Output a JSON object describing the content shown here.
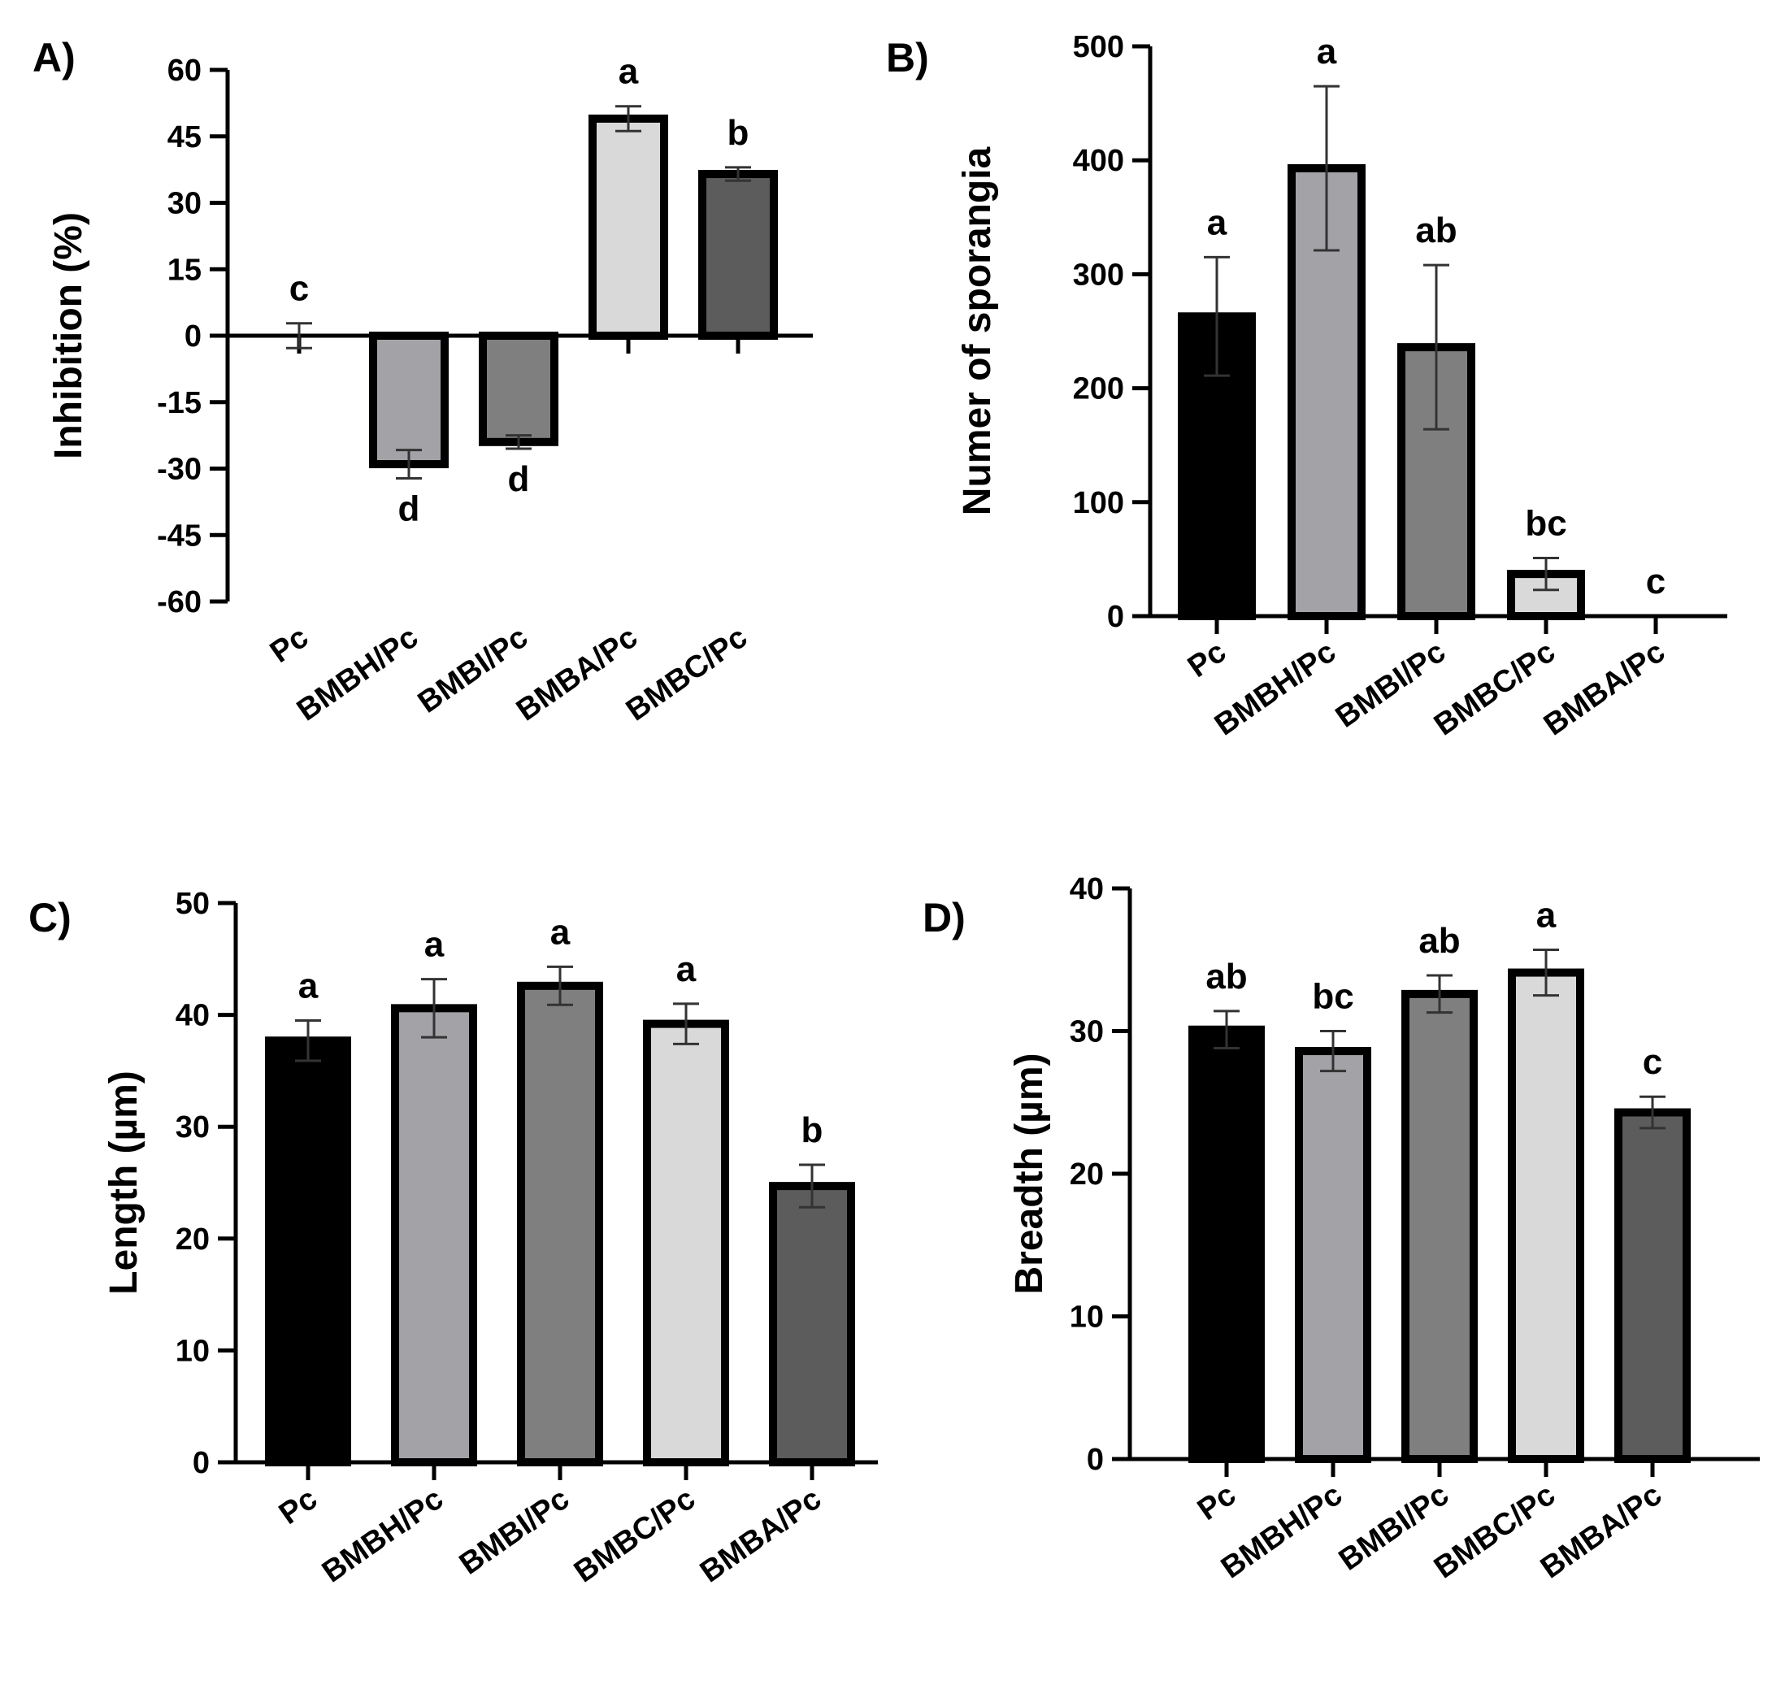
{
  "colors": {
    "black": "#000000",
    "light_gray": "#a3a3a7",
    "mid_gray": "#7f7f7f",
    "pale_gray": "#d9d9d9",
    "dark_gray": "#5c5c5c",
    "axis": "#000000"
  },
  "chart_data": [
    {
      "id": "A",
      "panel_label": "A)",
      "type": "bar",
      "title": "",
      "xlabel": "",
      "ylabel": "Inhibition (%)",
      "ylim": [
        -60,
        60
      ],
      "yticks": [
        60,
        45,
        30,
        15,
        0,
        -15,
        -30,
        -45,
        -60
      ],
      "ytick_labels": [
        "60",
        "45",
        "30",
        "15",
        "0",
        "-15",
        "-30",
        "-45",
        "-60"
      ],
      "categories": [
        "Pc",
        "BMBH/Pc",
        "BMBI/Pc",
        "BMBA/Pc",
        "BMBC/Pc"
      ],
      "values": [
        0,
        -29,
        -24,
        49,
        36.5
      ],
      "errors": [
        2.8,
        3.2,
        1.5,
        2.8,
        1.5
      ],
      "labels": [
        "c",
        "d",
        "d",
        "a",
        "b"
      ],
      "bar_colors": [
        "#000000",
        "#a3a3a7",
        "#7f7f7f",
        "#d9d9d9",
        "#5c5c5c"
      ],
      "grid": false
    },
    {
      "id": "B",
      "panel_label": "B)",
      "type": "bar",
      "title": "",
      "xlabel": "",
      "ylabel": "Numer of sporangia",
      "ylim": [
        0,
        500
      ],
      "yticks": [
        0,
        100,
        200,
        300,
        400,
        500
      ],
      "ytick_labels": [
        "0",
        "100",
        "200",
        "300",
        "400",
        "500"
      ],
      "categories": [
        "Pc",
        "BMBH/Pc",
        "BMBI/Pc",
        "BMBC/Pc",
        "BMBA/Pc"
      ],
      "values": [
        263,
        393,
        236,
        37,
        0
      ],
      "errors": [
        52,
        72,
        72,
        14,
        0
      ],
      "labels": [
        "a",
        "a",
        "ab",
        "bc",
        "c"
      ],
      "bar_colors": [
        "#000000",
        "#a3a3a7",
        "#7f7f7f",
        "#d9d9d9",
        "#5c5c5c"
      ],
      "grid": false
    },
    {
      "id": "C",
      "panel_label": "C)",
      "type": "bar",
      "title": "",
      "xlabel": "",
      "ylabel": "Length (µm)",
      "ylim": [
        0,
        50
      ],
      "yticks": [
        0,
        10,
        20,
        30,
        40,
        50
      ],
      "ytick_labels": [
        "0",
        "10",
        "20",
        "30",
        "40",
        "50"
      ],
      "categories": [
        "Pc",
        "BMBH/Pc",
        "BMBI/Pc",
        "BMBC/Pc",
        "BMBA/Pc"
      ],
      "values": [
        37.7,
        40.6,
        42.6,
        39.2,
        24.7
      ],
      "errors": [
        1.8,
        2.6,
        1.7,
        1.8,
        1.9
      ],
      "labels": [
        "a",
        "a",
        "a",
        "a",
        "b"
      ],
      "bar_colors": [
        "#000000",
        "#a3a3a7",
        "#7f7f7f",
        "#d9d9d9",
        "#5c5c5c"
      ],
      "grid": false
    },
    {
      "id": "D",
      "panel_label": "D)",
      "type": "bar",
      "title": "",
      "xlabel": "",
      "ylabel": "Breadth (µm)",
      "ylim": [
        0,
        40
      ],
      "yticks": [
        0,
        10,
        20,
        30,
        40
      ],
      "ytick_labels": [
        "0",
        "10",
        "20",
        "30",
        "40"
      ],
      "categories": [
        "Pc",
        "BMBH/Pc",
        "BMBI/Pc",
        "BMBC/Pc",
        "BMBA/Pc"
      ],
      "values": [
        30.1,
        28.6,
        32.6,
        34.1,
        24.3
      ],
      "errors": [
        1.3,
        1.4,
        1.3,
        1.6,
        1.1
      ],
      "labels": [
        "ab",
        "bc",
        "ab",
        "a",
        "c"
      ],
      "bar_colors": [
        "#000000",
        "#a3a3a7",
        "#7f7f7f",
        "#d9d9d9",
        "#5c5c5c"
      ],
      "grid": false
    }
  ]
}
